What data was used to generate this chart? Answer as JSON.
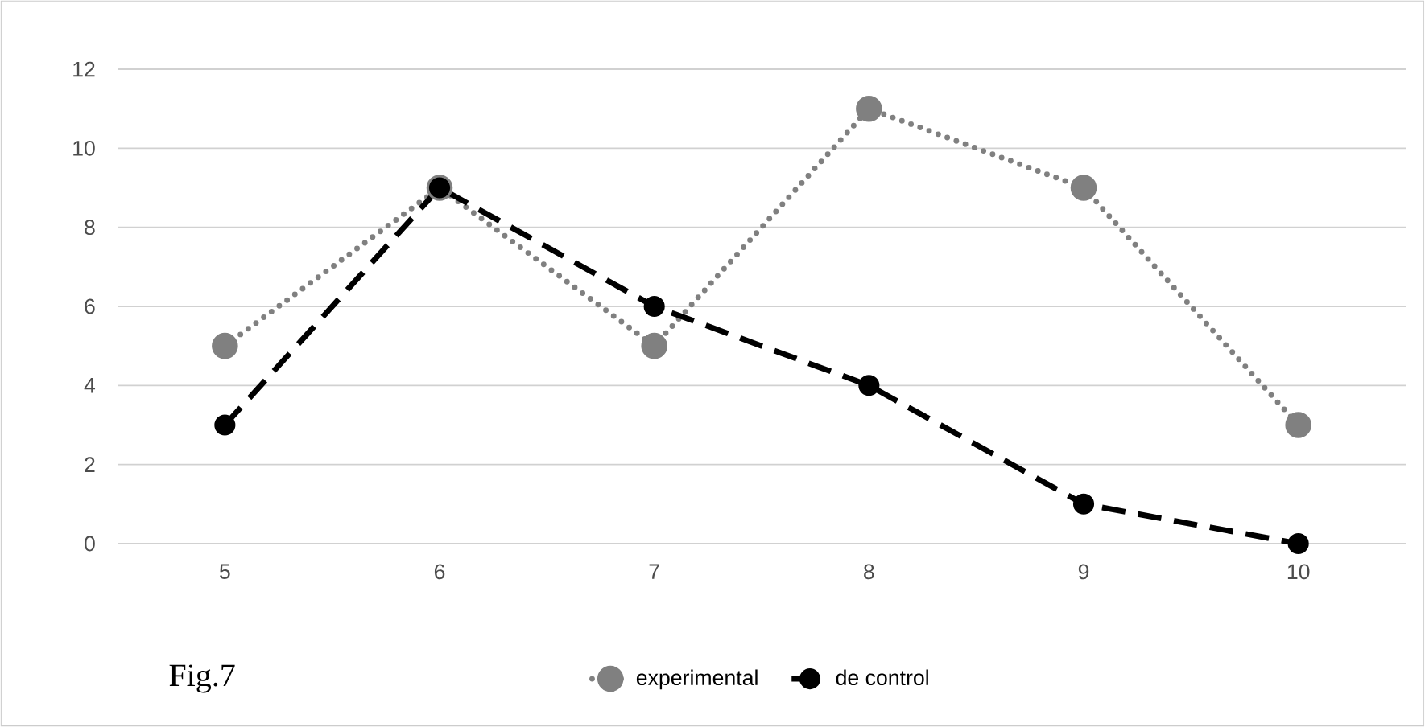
{
  "chart_data": {
    "type": "line",
    "categories": [
      "5",
      "6",
      "7",
      "8",
      "9",
      "10"
    ],
    "series": [
      {
        "name": "experimental",
        "color": "#808080",
        "line_style": "dotted",
        "values": [
          5,
          9,
          5,
          11,
          9,
          3
        ]
      },
      {
        "name": "de control",
        "color": "#000000",
        "line_style": "dashed",
        "values": [
          3,
          9,
          6,
          4,
          1,
          0
        ]
      }
    ],
    "ylim": [
      0,
      12
    ],
    "yticks": [
      0,
      2,
      4,
      6,
      8,
      10,
      12
    ],
    "grid": "y",
    "legend": "bottom",
    "marker": "circle",
    "annotations": [
      "Fig.7"
    ]
  }
}
